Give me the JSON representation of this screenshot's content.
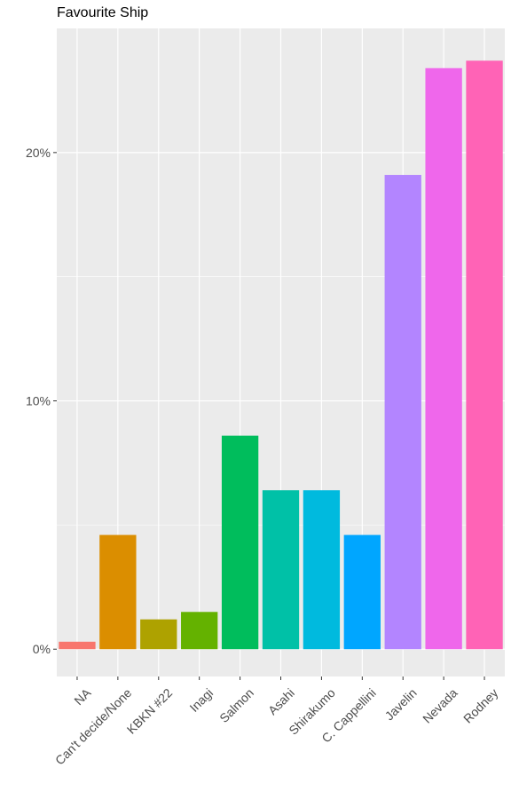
{
  "chart_data": {
    "type": "bar",
    "title": "Favourite Ship",
    "xlabel": "",
    "ylabel": "",
    "categories": [
      "NA",
      "Can't decide/None",
      "KBKN #22",
      "Inagi",
      "Salmon",
      "Asahi",
      "Shirakumo",
      "C. Cappellini",
      "Javelin",
      "Nevada",
      "Rodney"
    ],
    "values": [
      0.3,
      4.6,
      1.2,
      1.5,
      8.6,
      6.4,
      6.4,
      4.6,
      19.1,
      23.4,
      23.7
    ],
    "colors": [
      "#F8766D",
      "#DB8E00",
      "#AEA200",
      "#64B200",
      "#00BD5C",
      "#00C1A7",
      "#00BADE",
      "#00A6FF",
      "#B385FF",
      "#EF67EB",
      "#FF63B6"
    ],
    "ylim": [
      -1.1,
      25
    ],
    "yticks": [
      0,
      10,
      20
    ],
    "ytick_labels": [
      "0%",
      "10%",
      "20%"
    ],
    "grid": true,
    "legend": "none",
    "panel_background": "#EBEBEB",
    "grid_color": "#FFFFFF"
  }
}
